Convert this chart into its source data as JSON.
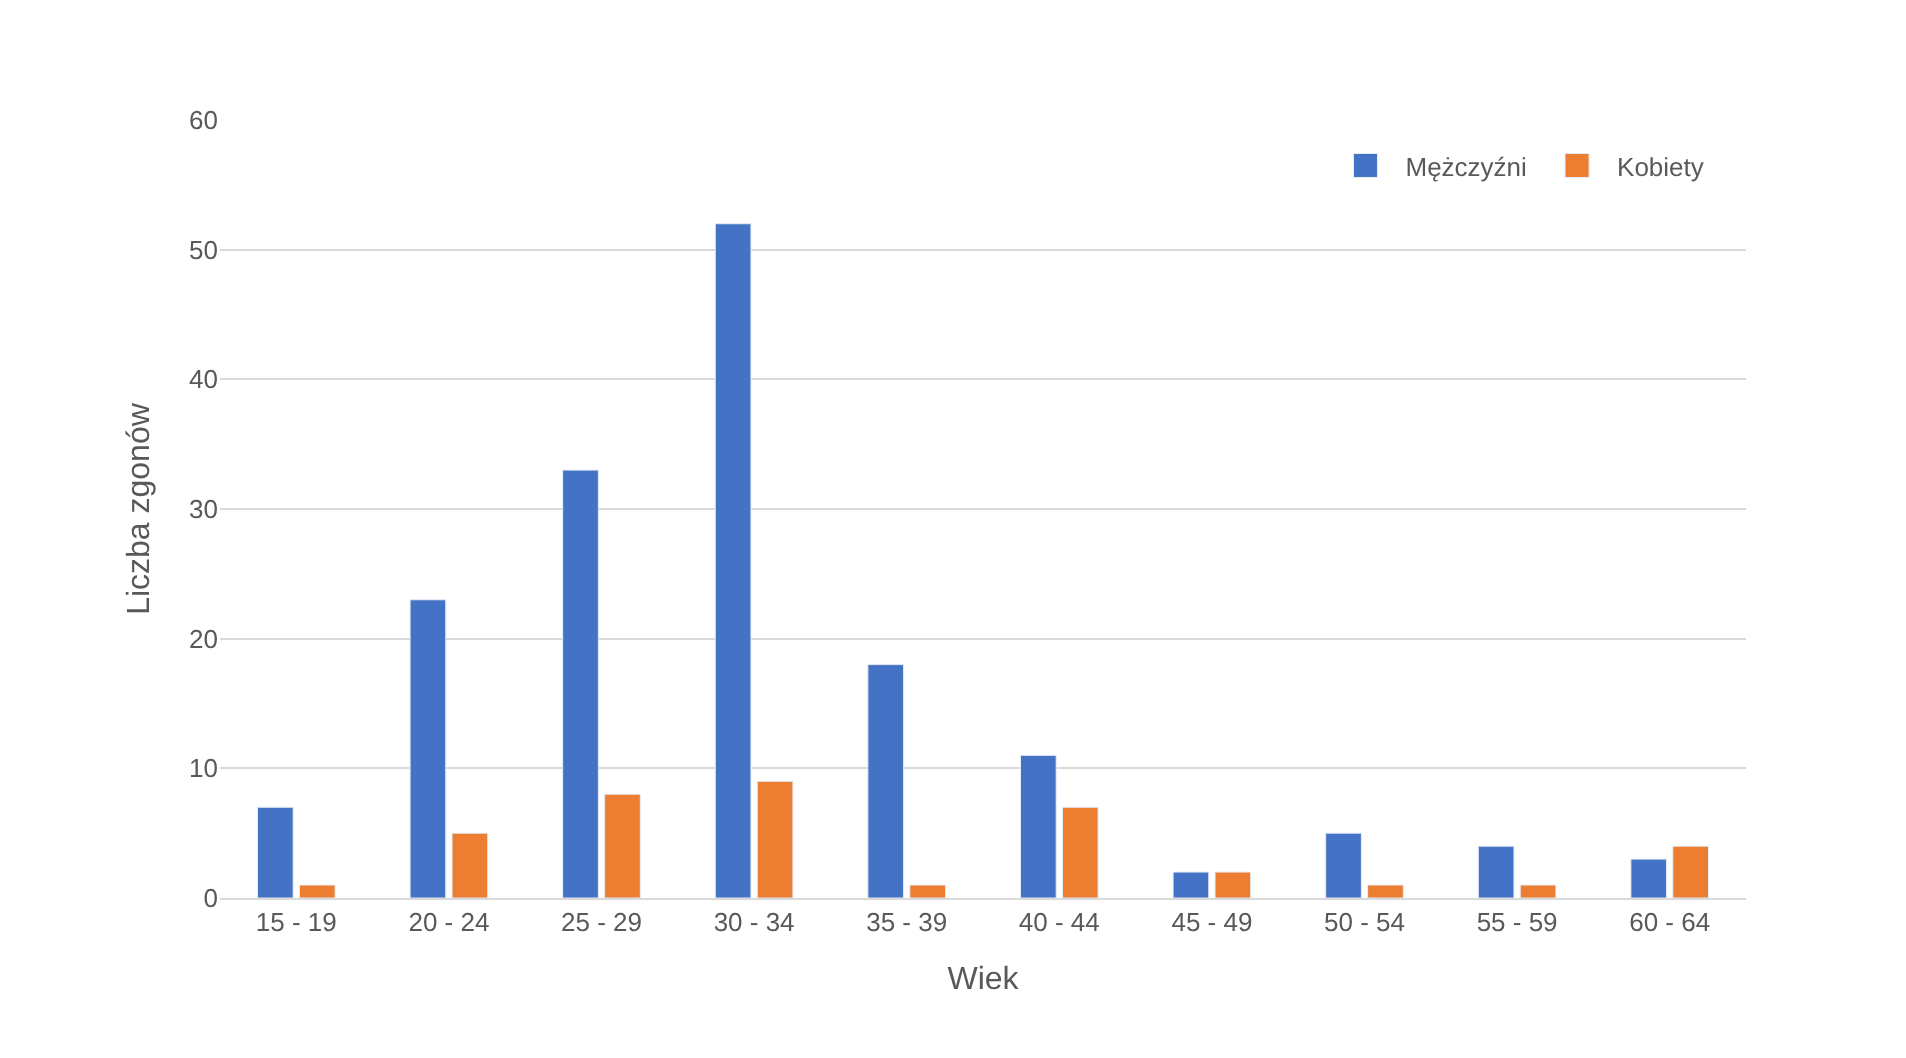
{
  "chart_data": {
    "type": "bar",
    "xlabel": "Wiek",
    "ylabel": "Liczba zgonów",
    "categories": [
      "15 - 19",
      "20 - 24",
      "25 - 29",
      "30 - 34",
      "35 - 39",
      "40 - 44",
      "45 - 49",
      "50 - 54",
      "55 - 59",
      "60 - 64"
    ],
    "series": [
      {
        "name": "Mężczyźni",
        "color": "#4472c4",
        "values": [
          7,
          23,
          33,
          52,
          18,
          11,
          2,
          5,
          4,
          3
        ]
      },
      {
        "name": "Kobiety",
        "color": "#ed7d31",
        "values": [
          1,
          5,
          8,
          9,
          1,
          7,
          2,
          1,
          1,
          4
        ]
      }
    ],
    "ylim": [
      0,
      60
    ],
    "yticks": [
      0,
      10,
      20,
      30,
      40,
      50,
      60
    ],
    "grid": "y",
    "legend": "top right"
  }
}
